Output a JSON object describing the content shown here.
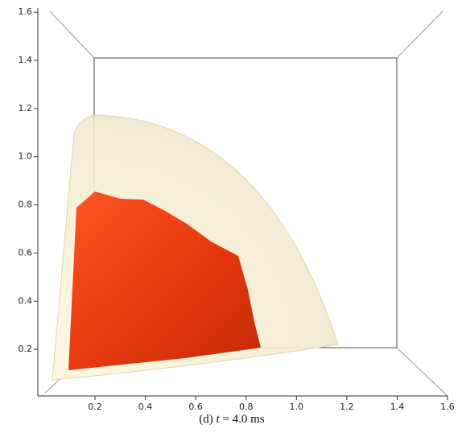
{
  "figure": {
    "xticks": [
      0.2,
      0.4,
      0.6,
      0.8,
      {
        "value": 1,
        "label": "1.0"
      },
      1.2,
      1.4,
      1.6
    ],
    "yticks": [
      0.2,
      0.4,
      0.6,
      0.8,
      {
        "value": 1,
        "label": "1.0"
      },
      1.2,
      1.4,
      1.6
    ],
    "caption": {
      "label": "(d)",
      "variable": "t",
      "equation": "= 4.0 ms"
    }
  }
}
